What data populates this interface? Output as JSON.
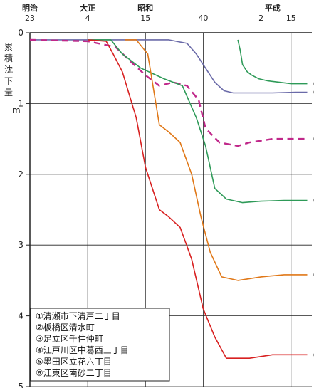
{
  "chart_data": {
    "type": "line",
    "ylabel_chars": [
      "累",
      "積",
      "沈",
      "下",
      "量"
    ],
    "yunit": "m",
    "ylim": [
      0,
      5
    ],
    "yticks": [
      "0",
      "1",
      "2",
      "3",
      "4",
      "5"
    ],
    "xlim": [
      1890,
      2012
    ],
    "era_labels": [
      {
        "label": "明治",
        "year": 1890
      },
      {
        "label": "大正",
        "year": 1915
      },
      {
        "label": "昭和",
        "year": 1940
      },
      {
        "label": "平成",
        "year": 1995
      }
    ],
    "year_labels": [
      {
        "label": "23",
        "year": 1890
      },
      {
        "label": "4",
        "year": 1915
      },
      {
        "label": "15",
        "year": 1940
      },
      {
        "label": "40",
        "year": 1965
      },
      {
        "label": "2",
        "year": 1990
      },
      {
        "label": "15",
        "year": 2003
      }
    ],
    "series": [
      {
        "id": "1",
        "marker": "①",
        "name": "清瀬市下清戸二丁目",
        "color": "#2e9a58",
        "dash": false,
        "x": [
          1980,
          1981,
          1982,
          1984,
          1986,
          1989,
          1993,
          1998,
          2003,
          2010
        ],
        "y": [
          0.1,
          0.25,
          0.45,
          0.55,
          0.6,
          0.65,
          0.68,
          0.7,
          0.72,
          0.72
        ]
      },
      {
        "id": "2",
        "marker": "②",
        "name": "板橋区清水町",
        "color": "#6a6aa8",
        "dash": false,
        "x": [
          1890,
          1930,
          1950,
          1958,
          1962,
          1966,
          1970,
          1974,
          1978,
          1985,
          1995,
          2005,
          2010
        ],
        "y": [
          0.1,
          0.1,
          0.1,
          0.15,
          0.3,
          0.5,
          0.7,
          0.82,
          0.85,
          0.85,
          0.85,
          0.84,
          0.84
        ]
      },
      {
        "id": "3",
        "marker": "③",
        "name": "足立区千住仲町",
        "color": "#c0288a",
        "dash": true,
        "x": [
          1890,
          1915,
          1927,
          1935,
          1940,
          1946,
          1952,
          1958,
          1963,
          1966,
          1972,
          1980,
          1985,
          1995,
          2010
        ],
        "y": [
          0.1,
          0.12,
          0.2,
          0.45,
          0.6,
          0.75,
          0.7,
          0.75,
          0.95,
          1.35,
          1.55,
          1.6,
          1.55,
          1.5,
          1.5
        ]
      },
      {
        "id": "4",
        "marker": "④",
        "name": "江戸川区中葛西三丁目",
        "color": "#2e9a58",
        "dash": false,
        "x": [
          1915,
          1925,
          1930,
          1938,
          1948,
          1956,
          1962,
          1966,
          1970,
          1975,
          1982,
          1990,
          2000,
          2010
        ],
        "y": [
          0.1,
          0.1,
          0.3,
          0.5,
          0.65,
          0.75,
          1.2,
          1.6,
          2.2,
          2.35,
          2.4,
          2.38,
          2.37,
          2.37
        ]
      },
      {
        "id": "5",
        "marker": "⑤",
        "name": "墨田区立花六丁目",
        "color": "#e07818",
        "dash": false,
        "x": [
          1931,
          1936,
          1941,
          1946,
          1950,
          1955,
          1960,
          1964,
          1968,
          1973,
          1980,
          1990,
          2000,
          2010
        ],
        "y": [
          0.1,
          0.1,
          0.3,
          1.3,
          1.4,
          1.55,
          2.0,
          2.6,
          3.1,
          3.45,
          3.5,
          3.45,
          3.42,
          3.42
        ]
      },
      {
        "id": "6",
        "marker": "⑥",
        "name": "江東区南砂二丁目",
        "color": "#d82020",
        "dash": false,
        "x": [
          1915,
          1923,
          1926,
          1930,
          1936,
          1940,
          1946,
          1950,
          1955,
          1960,
          1965,
          1970,
          1975,
          1985,
          1995,
          2010
        ],
        "y": [
          0.1,
          0.12,
          0.3,
          0.55,
          1.2,
          1.9,
          2.5,
          2.6,
          2.75,
          3.2,
          3.9,
          4.3,
          4.6,
          4.6,
          4.55,
          4.55
        ]
      }
    ]
  }
}
